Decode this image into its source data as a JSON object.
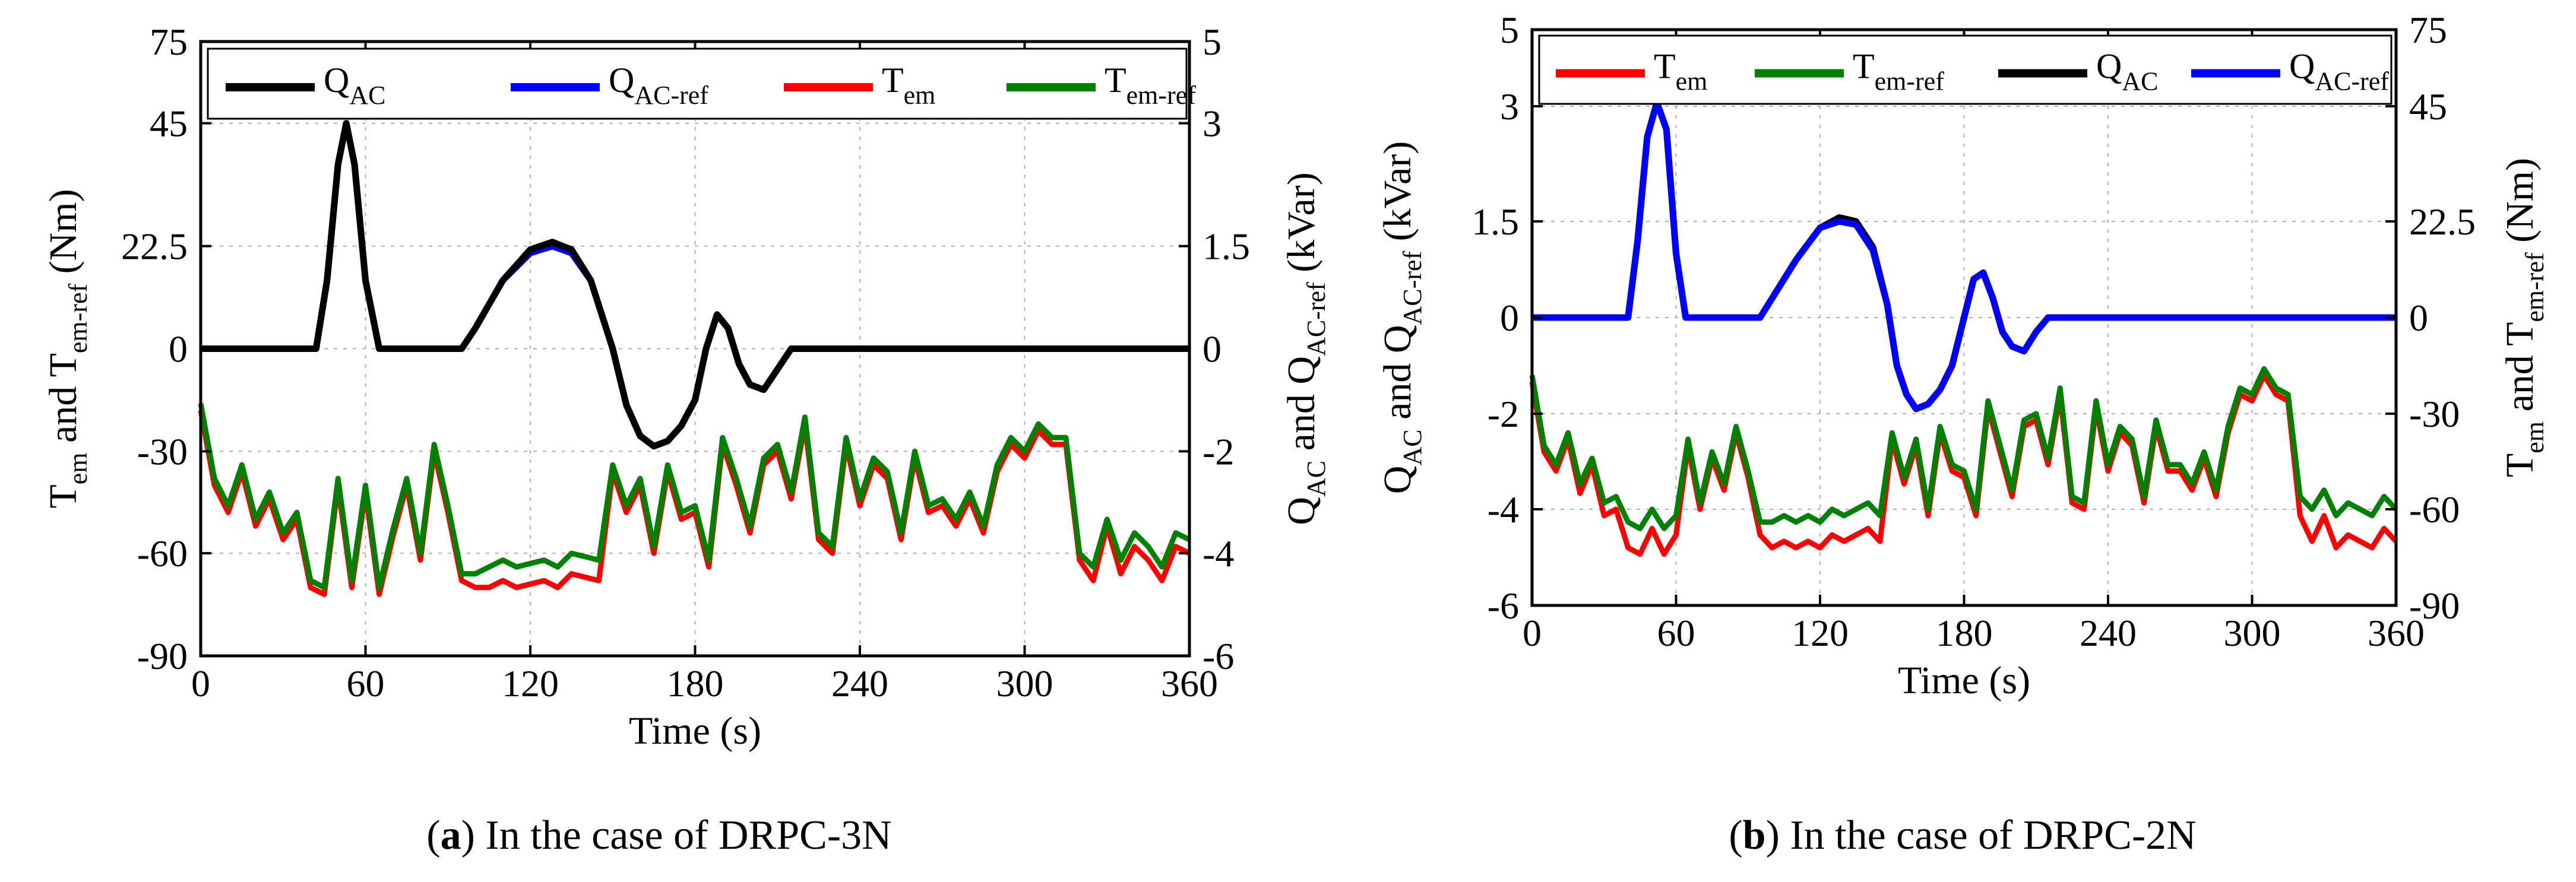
{
  "chart_data": [
    {
      "type": "line",
      "panel_label": "a",
      "caption": "In the case of DRPC-3N",
      "xlabel": "Time  (s)",
      "x_ticks": [
        "0",
        "60",
        "120",
        "180",
        "240",
        "300",
        "360"
      ],
      "xlim": [
        0,
        360
      ],
      "left_axis": {
        "label_parts": [
          "T",
          "em",
          " and T",
          "em-ref",
          "  (Nm)"
        ],
        "ticks": [
          "75",
          "45",
          "22.5",
          "0",
          "-30",
          "-60",
          "-90"
        ],
        "tick_values": [
          75,
          45,
          22.5,
          0,
          -30,
          -60,
          -90
        ]
      },
      "right_axis": {
        "label_parts": [
          "Q",
          "AC",
          "  and  Q",
          "AC-ref",
          "  (kVar)"
        ],
        "ticks": [
          "5",
          "3",
          "1.5",
          "0",
          "-2",
          "-4",
          "-6"
        ],
        "tick_values": [
          5,
          3,
          1.5,
          0,
          -2,
          -4,
          -6
        ]
      },
      "legend": [
        {
          "main": "Q",
          "sub": "AC",
          "color": "#000000"
        },
        {
          "main": "Q",
          "sub": "AC-ref",
          "color": "#0000ff"
        },
        {
          "main": "T",
          "sub": "em",
          "color": "#ff0000"
        },
        {
          "main": "T",
          "sub": "em-ref",
          "color": "#008000"
        }
      ],
      "series": [
        {
          "name": "Q_AC-ref",
          "axis": "right",
          "color": "#0000ff",
          "x": [
            0,
            42,
            46,
            50,
            53,
            56,
            60,
            65,
            95,
            100,
            110,
            120,
            128,
            135,
            142,
            150,
            155,
            160,
            165,
            170,
            175,
            180,
            184,
            188,
            192,
            196,
            200,
            205,
            210,
            215,
            360
          ],
          "values": [
            0,
            0,
            1,
            2.5,
            3,
            2.5,
            1,
            0,
            0,
            0.3,
            1,
            1.4,
            1.5,
            1.4,
            1,
            0,
            -1.1,
            -1.7,
            -1.9,
            -1.8,
            -1.5,
            -1,
            0,
            0.5,
            0.3,
            -0.3,
            -0.7,
            -0.8,
            -0.4,
            0,
            0
          ]
        },
        {
          "name": "T_em",
          "axis": "left",
          "color": "#ff0000",
          "x": [
            0,
            5,
            10,
            15,
            20,
            25,
            30,
            35,
            40,
            45,
            50,
            55,
            60,
            65,
            70,
            75,
            80,
            85,
            90,
            95,
            100,
            105,
            110,
            115,
            120,
            125,
            130,
            135,
            140,
            145,
            150,
            155,
            160,
            165,
            170,
            175,
            180,
            185,
            190,
            195,
            200,
            205,
            210,
            215,
            220,
            225,
            230,
            235,
            240,
            245,
            250,
            255,
            260,
            265,
            270,
            275,
            280,
            285,
            290,
            295,
            300,
            305,
            310,
            315,
            320,
            325,
            330,
            335,
            340,
            345,
            350,
            355,
            360
          ],
          "values": [
            -18,
            -40,
            -48,
            -36,
            -52,
            -44,
            -56,
            -50,
            -70,
            -72,
            -40,
            -70,
            -42,
            -72,
            -55,
            -40,
            -62,
            -30,
            -48,
            -68,
            -70,
            -70,
            -68,
            -70,
            -69,
            -68,
            -70,
            -66,
            -67,
            -68,
            -36,
            -48,
            -40,
            -60,
            -36,
            -50,
            -48,
            -64,
            -28,
            -40,
            -54,
            -34,
            -30,
            -44,
            -22,
            -56,
            -60,
            -28,
            -46,
            -34,
            -38,
            -56,
            -32,
            -48,
            -46,
            -52,
            -44,
            -54,
            -36,
            -28,
            -32,
            -24,
            -28,
            -28,
            -62,
            -68,
            -52,
            -66,
            -58,
            -62,
            -68,
            -58,
            -60
          ]
        },
        {
          "name": "T_em-ref",
          "axis": "left",
          "color": "#008000",
          "x": [
            0,
            5,
            10,
            15,
            20,
            25,
            30,
            35,
            40,
            45,
            50,
            55,
            60,
            65,
            70,
            75,
            80,
            85,
            90,
            95,
            100,
            105,
            110,
            115,
            120,
            125,
            130,
            135,
            140,
            145,
            150,
            155,
            160,
            165,
            170,
            175,
            180,
            185,
            190,
            195,
            200,
            205,
            210,
            215,
            220,
            225,
            230,
            235,
            240,
            245,
            250,
            255,
            260,
            265,
            270,
            275,
            280,
            285,
            290,
            295,
            300,
            305,
            310,
            315,
            320,
            325,
            330,
            335,
            340,
            345,
            350,
            355,
            360
          ],
          "values": [
            -16,
            -38,
            -46,
            -34,
            -50,
            -42,
            -54,
            -48,
            -68,
            -70,
            -38,
            -68,
            -40,
            -70,
            -53,
            -38,
            -60,
            -28,
            -46,
            -66,
            -66,
            -64,
            -62,
            -64,
            -63,
            -62,
            -64,
            -60,
            -61,
            -62,
            -34,
            -46,
            -38,
            -58,
            -34,
            -48,
            -46,
            -62,
            -26,
            -38,
            -52,
            -32,
            -28,
            -42,
            -20,
            -54,
            -58,
            -26,
            -44,
            -32,
            -36,
            -54,
            -30,
            -46,
            -44,
            -50,
            -42,
            -52,
            -34,
            -26,
            -30,
            -22,
            -26,
            -26,
            -60,
            -64,
            -50,
            -62,
            -54,
            -58,
            -64,
            -54,
            -56
          ]
        },
        {
          "name": "Q_AC",
          "axis": "right",
          "color": "#000000",
          "x": [
            0,
            42,
            46,
            50,
            53,
            56,
            60,
            65,
            95,
            100,
            110,
            120,
            128,
            135,
            142,
            150,
            155,
            160,
            165,
            170,
            175,
            180,
            184,
            188,
            192,
            196,
            200,
            205,
            210,
            215,
            360
          ],
          "values": [
            0,
            0,
            1,
            2.5,
            3,
            2.5,
            1,
            0,
            0,
            0.3,
            1,
            1.45,
            1.55,
            1.45,
            1,
            0,
            -1.1,
            -1.7,
            -1.9,
            -1.8,
            -1.5,
            -1,
            0,
            0.5,
            0.3,
            -0.3,
            -0.7,
            -0.8,
            -0.4,
            0,
            0
          ]
        }
      ]
    },
    {
      "type": "line",
      "panel_label": "b",
      "caption": "In the case of DRPC-2N",
      "xlabel": "Time  (s)",
      "x_ticks": [
        "0",
        "60",
        "120",
        "180",
        "240",
        "300",
        "360"
      ],
      "xlim": [
        0,
        360
      ],
      "left_axis": {
        "label_parts": [
          "Q",
          "AC",
          " and Q",
          "AC-ref",
          "  (kVar)"
        ],
        "ticks": [
          "5",
          "3",
          "1.5",
          "0",
          "-2",
          "-4",
          "-6"
        ],
        "tick_values": [
          5,
          3,
          1.5,
          0,
          -2,
          -4,
          -6
        ]
      },
      "right_axis": {
        "label_parts": [
          "T",
          "em",
          "  and  T",
          "em-ref",
          "  (Nm)"
        ],
        "ticks": [
          "75",
          "45",
          "22.5",
          "0",
          "-30",
          "-60",
          "-90"
        ],
        "tick_values": [
          75,
          45,
          22.5,
          0,
          -30,
          -60,
          -90
        ]
      },
      "legend": [
        {
          "main": "T",
          "sub": "em",
          "color": "#ff0000"
        },
        {
          "main": "T",
          "sub": "em-ref",
          "color": "#008000"
        },
        {
          "main": "Q",
          "sub": "AC",
          "color": "#000000"
        },
        {
          "main": "Q",
          "sub": "AC-ref",
          "color": "#0000ff"
        }
      ],
      "series": [
        {
          "name": "T_em",
          "axis": "right",
          "color": "#ff0000",
          "x": [
            0,
            5,
            10,
            15,
            20,
            25,
            30,
            35,
            40,
            45,
            50,
            55,
            60,
            65,
            70,
            75,
            80,
            85,
            90,
            95,
            100,
            105,
            110,
            115,
            120,
            125,
            130,
            135,
            140,
            145,
            150,
            155,
            160,
            165,
            170,
            175,
            180,
            185,
            190,
            195,
            200,
            205,
            210,
            215,
            220,
            225,
            230,
            235,
            240,
            245,
            250,
            255,
            260,
            265,
            270,
            275,
            280,
            285,
            290,
            295,
            300,
            305,
            310,
            315,
            320,
            325,
            330,
            335,
            340,
            345,
            350,
            355,
            360
          ],
          "values": [
            -20,
            -42,
            -48,
            -38,
            -55,
            -46,
            -62,
            -60,
            -72,
            -74,
            -66,
            -74,
            -68,
            -40,
            -60,
            -44,
            -54,
            -36,
            -50,
            -68,
            -72,
            -70,
            -72,
            -70,
            -72,
            -68,
            -70,
            -68,
            -66,
            -70,
            -38,
            -52,
            -40,
            -62,
            -36,
            -48,
            -50,
            -62,
            -28,
            -42,
            -56,
            -34,
            -32,
            -46,
            -24,
            -58,
            -60,
            -28,
            -48,
            -36,
            -40,
            -58,
            -34,
            -48,
            -48,
            -54,
            -44,
            -56,
            -36,
            -24,
            -26,
            -18,
            -24,
            -26,
            -62,
            -70,
            -62,
            -72,
            -68,
            -70,
            -72,
            -66,
            -70
          ]
        },
        {
          "name": "T_em-ref",
          "axis": "right",
          "color": "#008000",
          "x": [
            0,
            5,
            10,
            15,
            20,
            25,
            30,
            35,
            40,
            45,
            50,
            55,
            60,
            65,
            70,
            75,
            80,
            85,
            90,
            95,
            100,
            105,
            110,
            115,
            120,
            125,
            130,
            135,
            140,
            145,
            150,
            155,
            160,
            165,
            170,
            175,
            180,
            185,
            190,
            195,
            200,
            205,
            210,
            215,
            220,
            225,
            230,
            235,
            240,
            245,
            250,
            255,
            260,
            265,
            270,
            275,
            280,
            285,
            290,
            295,
            300,
            305,
            310,
            315,
            320,
            325,
            330,
            335,
            340,
            345,
            350,
            355,
            360
          ],
          "values": [
            -18,
            -40,
            -46,
            -36,
            -52,
            -44,
            -58,
            -56,
            -64,
            -66,
            -60,
            -66,
            -62,
            -38,
            -58,
            -42,
            -52,
            -34,
            -48,
            -64,
            -64,
            -62,
            -64,
            -62,
            -64,
            -60,
            -62,
            -60,
            -58,
            -62,
            -36,
            -50,
            -38,
            -60,
            -34,
            -46,
            -48,
            -60,
            -26,
            -40,
            -54,
            -32,
            -30,
            -44,
            -22,
            -56,
            -58,
            -26,
            -46,
            -34,
            -38,
            -56,
            -32,
            -46,
            -46,
            -52,
            -42,
            -54,
            -34,
            -22,
            -24,
            -16,
            -22,
            -24,
            -56,
            -60,
            -54,
            -62,
            -58,
            -60,
            -62,
            -56,
            -60
          ]
        },
        {
          "name": "Q_AC",
          "axis": "left",
          "color": "#000000",
          "x": [
            0,
            40,
            44,
            48,
            52,
            56,
            60,
            64,
            95,
            100,
            110,
            120,
            128,
            135,
            142,
            148,
            152,
            156,
            160,
            165,
            170,
            175,
            180,
            184,
            188,
            192,
            196,
            200,
            205,
            210,
            215,
            360
          ],
          "values": [
            0,
            0,
            1.2,
            2.6,
            3.1,
            2.7,
            1,
            0,
            0,
            0.3,
            0.9,
            1.4,
            1.55,
            1.5,
            1.1,
            0.2,
            -1,
            -1.6,
            -1.9,
            -1.8,
            -1.5,
            -1,
            0,
            0.6,
            0.7,
            0.3,
            -0.3,
            -0.6,
            -0.7,
            -0.3,
            0,
            0
          ]
        },
        {
          "name": "Q_AC-ref",
          "axis": "left",
          "color": "#0000ff",
          "x": [
            0,
            40,
            44,
            48,
            52,
            56,
            60,
            64,
            95,
            100,
            110,
            120,
            128,
            135,
            142,
            148,
            152,
            156,
            160,
            165,
            170,
            175,
            180,
            184,
            188,
            192,
            196,
            200,
            205,
            210,
            215,
            360
          ],
          "values": [
            0,
            0,
            1.2,
            2.6,
            3.1,
            2.7,
            1,
            0,
            0,
            0.3,
            0.9,
            1.4,
            1.5,
            1.45,
            1.05,
            0.2,
            -1,
            -1.6,
            -1.9,
            -1.8,
            -1.5,
            -1,
            0,
            0.6,
            0.7,
            0.3,
            -0.3,
            -0.6,
            -0.7,
            -0.3,
            0,
            0
          ]
        }
      ]
    }
  ]
}
